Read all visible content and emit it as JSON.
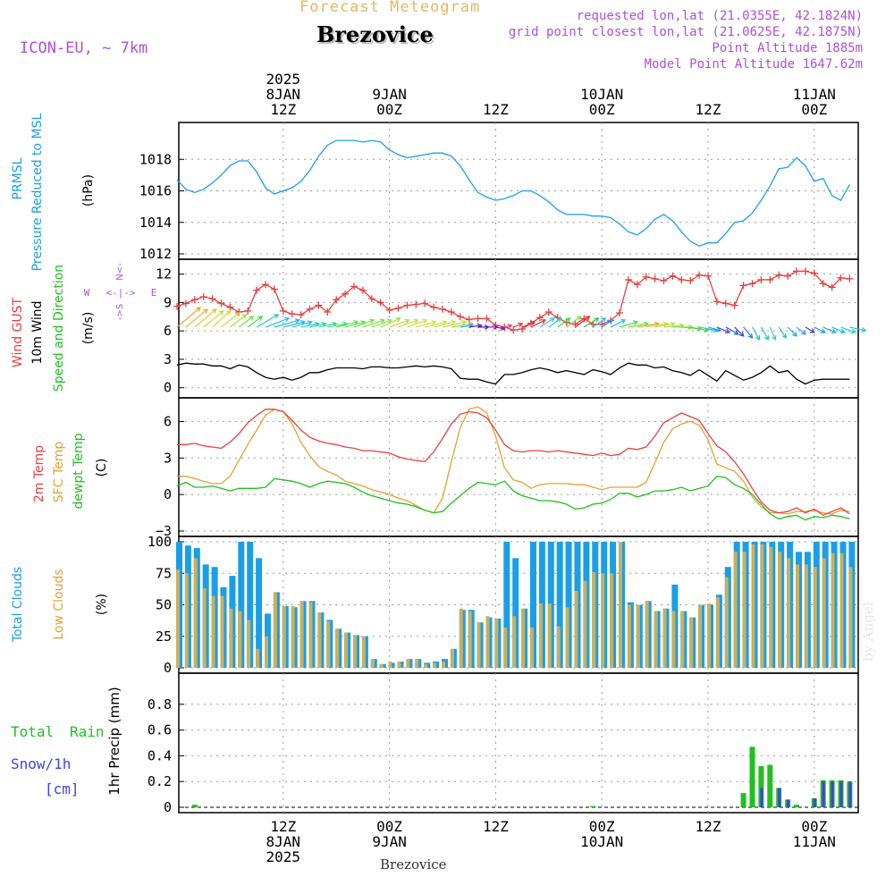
{
  "header": {
    "product": "Forecast Meteogram",
    "location": "Brezovice",
    "model": "ICON-EU, ~ 7km",
    "requested": "requested lon,lat (21.0355E, 42.1824N)",
    "grid_point": "grid point closest lon,lat (21.0625E, 42.1875N)",
    "point_altitude": "Point Altitude 1885m",
    "model_altitude": "Model Point Altitude 1647.62m",
    "footer_location": "Brezovice",
    "watermark": "by Angel"
  },
  "time_axis": {
    "top_labels": [
      {
        "t": 12,
        "lines": [
          "2025",
          "8JAN",
          "12Z"
        ]
      },
      {
        "t": 24,
        "lines": [
          "9JAN",
          "00Z"
        ]
      },
      {
        "t": 36,
        "lines": [
          "12Z"
        ]
      },
      {
        "t": 48,
        "lines": [
          "10JAN",
          "00Z"
        ]
      },
      {
        "t": 60,
        "lines": [
          "12Z"
        ]
      },
      {
        "t": 72,
        "lines": [
          "11JAN",
          "00Z"
        ]
      }
    ],
    "bottom_labels": [
      {
        "t": 12,
        "lines": [
          "12Z",
          "8JAN",
          "2025"
        ]
      },
      {
        "t": 24,
        "lines": [
          "00Z",
          "9JAN"
        ]
      },
      {
        "t": 36,
        "lines": [
          "12Z"
        ]
      },
      {
        "t": 48,
        "lines": [
          "00Z",
          "10JAN"
        ]
      },
      {
        "t": 60,
        "lines": [
          "12Z"
        ]
      },
      {
        "t": 72,
        "lines": [
          "00Z",
          "11JAN"
        ]
      }
    ]
  },
  "colors": {
    "pressure": "#1aa0e8",
    "gust": "#e84040",
    "wind": "#000000",
    "temp": "#e84040",
    "sfc": "#e8a030",
    "dew": "#20c020",
    "total_clouds": "#1a9ee8",
    "low_clouds": "#c8b060",
    "rain": "#20c020",
    "snow": "#4040e0",
    "purple": "#b04fd8"
  },
  "chart_data": [
    {
      "type": "line",
      "name": "pressure",
      "title": "PRMSL Pressure Reduced to MSL",
      "labels": [
        "PRMSL",
        "Pressure Reduced to MSL"
      ],
      "ylabel": "(hPa)",
      "ylim": [
        1012,
        1020
      ],
      "yticks": [
        1012,
        1014,
        1016,
        1018
      ],
      "x": [
        0,
        1,
        2,
        3,
        4,
        5,
        6,
        7,
        8,
        9,
        10,
        11,
        12,
        13,
        14,
        15,
        16,
        17,
        18,
        19,
        20,
        21,
        22,
        23,
        24,
        25,
        26,
        27,
        28,
        29,
        30,
        31,
        32,
        33,
        34,
        35,
        36,
        37,
        38,
        39,
        40,
        41,
        42,
        43,
        44,
        45,
        46,
        47,
        48,
        49,
        50,
        51,
        52,
        53,
        54,
        55,
        56,
        57,
        58,
        59,
        60,
        61,
        62,
        63,
        64,
        65,
        66,
        67,
        68,
        69,
        70,
        71,
        72,
        73,
        74,
        75,
        76
      ],
      "y": [
        1016.7,
        1016.1,
        1015.9,
        1016.1,
        1016.5,
        1017.0,
        1017.6,
        1017.9,
        1017.9,
        1017.2,
        1016.2,
        1015.8,
        1016.0,
        1016.2,
        1016.6,
        1017.3,
        1018.2,
        1018.9,
        1019.2,
        1019.2,
        1019.2,
        1019.1,
        1019.2,
        1019.1,
        1018.6,
        1018.3,
        1018.1,
        1018.2,
        1018.3,
        1018.4,
        1018.4,
        1018.2,
        1017.6,
        1016.7,
        1015.9,
        1015.6,
        1015.4,
        1015.5,
        1015.7,
        1016.0,
        1016.0,
        1015.7,
        1015.3,
        1014.8,
        1014.5,
        1014.5,
        1014.5,
        1014.4,
        1014.4,
        1014.3,
        1013.9,
        1013.4,
        1013.2,
        1013.6,
        1014.2,
        1014.5,
        1014.1,
        1013.4,
        1012.8,
        1012.5,
        1012.7,
        1012.7,
        1013.3,
        1014.0,
        1014.1,
        1014.6,
        1015.4,
        1016.3,
        1017.4,
        1017.5,
        1018.1,
        1017.6,
        1016.6,
        1016.8,
        1015.7,
        1015.4,
        1016.4
      ]
    },
    {
      "type": "line",
      "name": "wind",
      "labels": [
        "Wind GUST",
        "10m Wind",
        "Speed and Direction"
      ],
      "ylabel": "(m/s)",
      "compass": [
        "N",
        "<-|->",
        "W",
        "E",
        "S"
      ],
      "ylim": [
        -0.5,
        13
      ],
      "yticks": [
        0,
        3,
        6,
        9,
        12
      ],
      "x": [
        0,
        1,
        2,
        3,
        4,
        5,
        6,
        7,
        8,
        9,
        10,
        11,
        12,
        13,
        14,
        15,
        16,
        17,
        18,
        19,
        20,
        21,
        22,
        23,
        24,
        25,
        26,
        27,
        28,
        29,
        30,
        31,
        32,
        33,
        34,
        35,
        36,
        37,
        38,
        39,
        40,
        41,
        42,
        43,
        44,
        45,
        46,
        47,
        48,
        49,
        50,
        51,
        52,
        53,
        54,
        55,
        56,
        57,
        58,
        59,
        60,
        61,
        62,
        63,
        64,
        65,
        66,
        67,
        68,
        69,
        70,
        71,
        72,
        73,
        74,
        75,
        76
      ],
      "gust": [
        8.6,
        8.9,
        9.3,
        9.6,
        9.4,
        8.9,
        8.5,
        8.0,
        8.1,
        10.3,
        10.9,
        10.4,
        8.1,
        7.8,
        7.7,
        8.3,
        8.7,
        8.0,
        9.3,
        9.9,
        10.7,
        10.3,
        9.4,
        9.0,
        8.2,
        8.4,
        8.7,
        8.8,
        8.9,
        8.5,
        8.3,
        8.0,
        7.5,
        7.2,
        7.3,
        7.3,
        6.6,
        6.4,
        6.1,
        6.2,
        6.8,
        7.4,
        8.0,
        7.4,
        6.9,
        6.7,
        7.3,
        6.7,
        6.7,
        7.1,
        7.9,
        11.4,
        10.9,
        11.7,
        11.5,
        11.3,
        11.8,
        11.4,
        11.3,
        11.9,
        11.8,
        9.1,
        8.9,
        8.7,
        10.8,
        11.0,
        11.4,
        11.4,
        11.9,
        11.8,
        12.3,
        12.3,
        12.1,
        11.0,
        10.6,
        11.6,
        11.5
      ],
      "speed": [
        2.4,
        2.6,
        2.5,
        2.5,
        2.3,
        2.3,
        2.0,
        2.4,
        2.2,
        1.6,
        1.1,
        0.9,
        1.1,
        0.8,
        1.1,
        1.6,
        1.6,
        1.9,
        2.1,
        2.1,
        2.1,
        2.0,
        2.2,
        2.2,
        2.1,
        2.1,
        2.2,
        2.3,
        2.2,
        2.3,
        2.2,
        2.0,
        1.0,
        0.9,
        0.9,
        0.6,
        0.4,
        1.4,
        1.4,
        1.6,
        1.9,
        2.1,
        1.9,
        1.6,
        1.8,
        1.6,
        1.4,
        1.9,
        1.7,
        1.4,
        2.1,
        2.6,
        2.4,
        2.4,
        2.1,
        2.2,
        1.8,
        1.6,
        1.3,
        1.9,
        1.3,
        0.7,
        1.8,
        1.3,
        0.8,
        1.1,
        1.6,
        2.3,
        1.6,
        1.8,
        0.9,
        0.4,
        0.8,
        0.9,
        0.9,
        0.9,
        0.9
      ],
      "arrow_dx": [
        26,
        24,
        24,
        22,
        20,
        20,
        18,
        16,
        16,
        24,
        26,
        28,
        24,
        22,
        20,
        18,
        20,
        22,
        24,
        22,
        22,
        24,
        22,
        22,
        22,
        22,
        22,
        22,
        24,
        24,
        26,
        24,
        14,
        14,
        12,
        12,
        10,
        8,
        10,
        14,
        16,
        16,
        14,
        14,
        16,
        16,
        16,
        14,
        12,
        16,
        20,
        22,
        24,
        24,
        22,
        22,
        22,
        22,
        20,
        20,
        14,
        14,
        14,
        10,
        10,
        8,
        8,
        6,
        8,
        10,
        10,
        10,
        12,
        14,
        14,
        16,
        18
      ],
      "arrow_dy": [
        -22,
        -20,
        -20,
        -18,
        -18,
        -16,
        -14,
        -12,
        -12,
        -14,
        -10,
        -8,
        -6,
        -6,
        -4,
        -4,
        -4,
        -4,
        -6,
        -6,
        -8,
        -8,
        -8,
        -10,
        -8,
        -8,
        -8,
        -6,
        -6,
        -6,
        -6,
        -4,
        -2,
        -2,
        0,
        0,
        2,
        -2,
        -4,
        -6,
        -8,
        -10,
        -10,
        -10,
        -12,
        -12,
        -10,
        -10,
        -8,
        -8,
        -6,
        -4,
        -4,
        -4,
        -4,
        -2,
        0,
        2,
        4,
        4,
        4,
        6,
        8,
        10,
        12,
        14,
        14,
        14,
        12,
        10,
        8,
        6,
        6,
        6,
        6,
        6,
        4
      ],
      "arrow_color": [
        "#f0a030",
        "#f0b030",
        "#e8c030",
        "#e0d030",
        "#d8d830",
        "#c8d830",
        "#a0e030",
        "#70e040",
        "#40e040",
        "#20d0a0",
        "#20c0e0",
        "#20b0e0",
        "#20b0e0",
        "#20c0e0",
        "#20d0c0",
        "#20d0b0",
        "#30d890",
        "#40e070",
        "#50e060",
        "#60e050",
        "#70e040",
        "#80e040",
        "#90e040",
        "#a0e040",
        "#b0e040",
        "#c0e040",
        "#c8e040",
        "#d0e040",
        "#d0e040",
        "#c8e040",
        "#b0e040",
        "#90e040",
        "#20a0e8",
        "#6020c0",
        "#5010b0",
        "#8020d0",
        "#7020c0",
        "#e04080",
        "#e03060",
        "#e83050",
        "#e83030",
        "#40c0e0",
        "#20d0c0",
        "#40e040",
        "#80e040",
        "#e83030",
        "#40c040",
        "#20c0e0",
        "#20a0e8",
        "#20c0e0",
        "#40e040",
        "#60e040",
        "#f0a030",
        "#e0d030",
        "#c0e040",
        "#a0e040",
        "#80e040",
        "#60e040",
        "#40e040",
        "#20c0e0",
        "#20a0e8",
        "#6040d0",
        "#2060e0",
        "#4040d0",
        "#2080e0",
        "#20c0e0",
        "#20d0c0",
        "#40d0b0",
        "#20c0e0",
        "#20b0e0",
        "#40a0e8",
        "#4040d0",
        "#20a0e0",
        "#20b0e0",
        "#20c0e0",
        "#20d0d0",
        "#20c0e0"
      ]
    },
    {
      "type": "line",
      "name": "temperature",
      "labels": [
        "2m Temp",
        "SFC Temp",
        "dewpt Temp"
      ],
      "ylabel": "(C)",
      "ylim": [
        -3,
        7.5
      ],
      "yticks": [
        -3,
        0,
        3,
        6
      ],
      "x": [
        0,
        1,
        2,
        3,
        4,
        5,
        6,
        7,
        8,
        9,
        10,
        11,
        12,
        13,
        14,
        15,
        16,
        17,
        18,
        19,
        20,
        21,
        22,
        23,
        24,
        25,
        26,
        27,
        28,
        29,
        30,
        31,
        32,
        33,
        34,
        35,
        36,
        37,
        38,
        39,
        40,
        41,
        42,
        43,
        44,
        45,
        46,
        47,
        48,
        49,
        50,
        51,
        52,
        53,
        54,
        55,
        56,
        57,
        58,
        59,
        60,
        61,
        62,
        63,
        64,
        65,
        66,
        67,
        68,
        69,
        70,
        71,
        72,
        73,
        74,
        75,
        76
      ],
      "t2m": [
        4.1,
        4.1,
        4.2,
        4.0,
        3.9,
        3.8,
        4.3,
        5.0,
        5.9,
        6.5,
        7.0,
        7.0,
        6.8,
        6.1,
        5.3,
        4.7,
        4.4,
        4.2,
        4.1,
        3.9,
        3.8,
        3.6,
        3.6,
        3.5,
        3.4,
        3.1,
        2.9,
        2.8,
        2.7,
        3.5,
        4.6,
        5.8,
        6.6,
        6.8,
        6.7,
        6.3,
        5.3,
        4.1,
        3.6,
        3.5,
        3.6,
        3.6,
        3.5,
        3.6,
        3.5,
        3.4,
        3.3,
        3.2,
        3.4,
        3.2,
        3.3,
        3.8,
        3.7,
        3.9,
        4.8,
        5.9,
        6.3,
        6.7,
        6.4,
        6.1,
        5.0,
        4.0,
        3.5,
        2.7,
        1.7,
        0.5,
        -0.6,
        -1.3,
        -1.5,
        -1.4,
        -1.1,
        -1.5,
        -1.2,
        -1.7,
        -1.4,
        -1.1,
        -1.6
      ],
      "sfc": [
        1.5,
        1.5,
        1.3,
        1.1,
        0.9,
        0.9,
        1.5,
        2.8,
        4.1,
        5.3,
        6.5,
        7.0,
        6.8,
        5.8,
        4.3,
        3.2,
        2.3,
        1.9,
        1.6,
        1.1,
        0.9,
        0.7,
        0.4,
        0.2,
        0.0,
        -0.3,
        -0.5,
        -0.9,
        -1.3,
        -1.5,
        -0.3,
        2.7,
        5.5,
        7.0,
        7.2,
        6.7,
        4.8,
        2.2,
        1.2,
        1.0,
        0.5,
        0.8,
        0.9,
        0.9,
        0.9,
        0.8,
        0.8,
        0.6,
        0.4,
        0.6,
        0.6,
        0.6,
        0.6,
        1.0,
        2.6,
        4.3,
        5.4,
        5.8,
        6.0,
        5.7,
        4.5,
        2.5,
        2.2,
        1.9,
        1.1,
        -0.2,
        -1.0,
        -1.5,
        -1.5,
        -1.6,
        -1.4,
        -1.4,
        -1.3,
        -1.5,
        -1.6,
        -1.3,
        -1.4
      ],
      "dew": [
        0.7,
        1.0,
        0.6,
        0.6,
        0.7,
        0.5,
        0.3,
        0.5,
        0.5,
        0.5,
        0.6,
        1.3,
        1.2,
        1.1,
        0.9,
        0.6,
        0.9,
        1.1,
        1.0,
        0.9,
        0.6,
        0.2,
        -0.1,
        -0.3,
        -0.5,
        -0.7,
        -0.8,
        -1.0,
        -1.3,
        -1.5,
        -1.4,
        -0.7,
        -0.1,
        0.5,
        1.0,
        0.9,
        0.8,
        1.1,
        0.3,
        -0.1,
        -0.3,
        -0.5,
        -0.5,
        -0.6,
        -0.8,
        -1.2,
        -1.1,
        -0.8,
        -0.7,
        -0.4,
        0.1,
        0.1,
        -0.2,
        0.0,
        0.3,
        0.3,
        0.4,
        0.6,
        0.3,
        0.5,
        0.7,
        1.5,
        1.4,
        0.8,
        0.5,
        0.0,
        -0.8,
        -1.6,
        -2.0,
        -1.8,
        -1.7,
        -2.1,
        -1.8,
        -1.9,
        -1.7,
        -1.8,
        -2.0
      ]
    },
    {
      "type": "bar",
      "name": "clouds",
      "labels": [
        "Total Clouds",
        "Low Clouds"
      ],
      "ylabel": "(%)",
      "ylim": [
        0,
        100
      ],
      "yticks": [
        0,
        25,
        50,
        75,
        100
      ],
      "x": [
        0,
        1,
        2,
        3,
        4,
        5,
        6,
        7,
        8,
        9,
        10,
        11,
        12,
        13,
        14,
        15,
        16,
        17,
        18,
        19,
        20,
        21,
        22,
        23,
        24,
        25,
        26,
        27,
        28,
        29,
        30,
        31,
        32,
        33,
        34,
        35,
        36,
        37,
        38,
        39,
        40,
        41,
        42,
        43,
        44,
        45,
        46,
        47,
        48,
        49,
        50,
        51,
        52,
        53,
        54,
        55,
        56,
        57,
        58,
        59,
        60,
        61,
        62,
        63,
        64,
        65,
        66,
        67,
        68,
        69,
        70,
        71,
        72,
        73,
        74,
        75,
        76
      ],
      "total": [
        100,
        97,
        95,
        82,
        80,
        64,
        73,
        100,
        100,
        87,
        43,
        60,
        49,
        48,
        53,
        53,
        44,
        38,
        31,
        28,
        26,
        25,
        7,
        3,
        4,
        5,
        7,
        7,
        4,
        5,
        7,
        15,
        46,
        46,
        36,
        40,
        39,
        100,
        87,
        47,
        100,
        100,
        100,
        100,
        100,
        100,
        100,
        100,
        100,
        100,
        100,
        52,
        50,
        53,
        45,
        47,
        66,
        45,
        40,
        50,
        50,
        58,
        80,
        100,
        100,
        100,
        100,
        100,
        100,
        100,
        92,
        92,
        100,
        100,
        100,
        100,
        100
      ],
      "low": [
        78,
        75,
        87,
        63,
        57,
        57,
        47,
        45,
        38,
        15,
        25,
        60,
        49,
        49,
        53,
        52,
        44,
        37,
        31,
        28,
        26,
        25,
        7,
        3,
        5,
        5,
        7,
        7,
        3,
        4,
        5,
        15,
        47,
        45,
        36,
        41,
        39,
        32,
        41,
        47,
        32,
        51,
        51,
        33,
        48,
        61,
        69,
        76,
        75,
        75,
        100,
        50,
        50,
        53,
        45,
        47,
        45,
        45,
        40,
        50,
        51,
        56,
        72,
        92,
        92,
        98,
        98,
        96,
        92,
        87,
        82,
        82,
        80,
        87,
        91,
        91,
        80
      ]
    },
    {
      "type": "bar",
      "name": "precip",
      "labels": [
        "Total",
        "Rain",
        "Snow/1h",
        "[cm]"
      ],
      "ylabel": "1hr Precip (mm)",
      "ylim": [
        0,
        1.0
      ],
      "yticks": [
        0,
        0.2,
        0.4,
        0.6,
        0.8
      ],
      "x": [
        2,
        47,
        64,
        65,
        66,
        67,
        68,
        69,
        70,
        71,
        72,
        73,
        74,
        75,
        76
      ],
      "rain": [
        0.02,
        0.01,
        0.11,
        0.47,
        0.32,
        0.33,
        0.15,
        0.06,
        0.02,
        0.0,
        0.07,
        0.21,
        0.21,
        0.21,
        0.2
      ],
      "snow": [
        0.0,
        0.0,
        0.0,
        0.0,
        0.15,
        0.0,
        0.15,
        0.06,
        0.0,
        0.0,
        0.07,
        0.2,
        0.2,
        0.2,
        0.2
      ]
    }
  ]
}
